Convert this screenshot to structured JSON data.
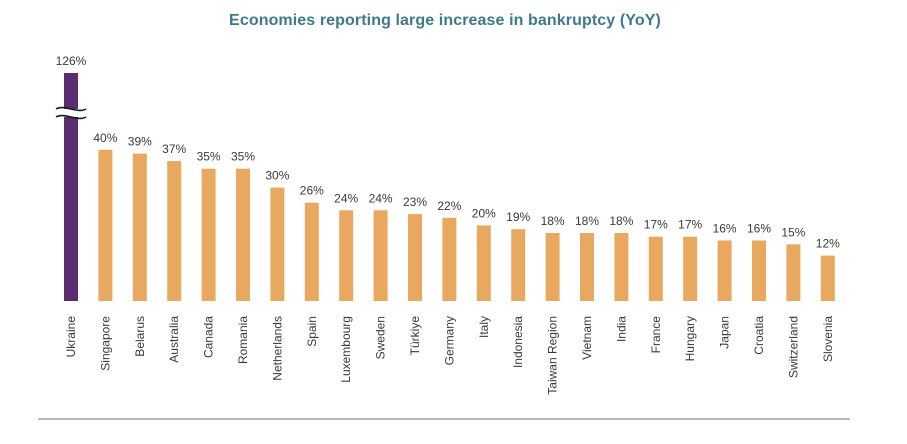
{
  "chart_data": {
    "type": "bar",
    "title": "Economies reporting large increase in bankruptcy (YoY)",
    "xlabel": "",
    "ylabel": "",
    "categories": [
      "Ukraine",
      "Singapore",
      "Belarus",
      "Australia",
      "Canada",
      "Romania",
      "Netherlands",
      "Spain",
      "Luxembourg",
      "Sweden",
      "Türkiye",
      "Germany",
      "Italy",
      "Indonesia",
      "Taiwan Region",
      "Vietnam",
      "India",
      "France",
      "Hungary",
      "Japan",
      "Croatia",
      "Switzerland",
      "Slovenia"
    ],
    "values": [
      126,
      40,
      39,
      37,
      35,
      35,
      30,
      26,
      24,
      24,
      23,
      22,
      20,
      19,
      18,
      18,
      18,
      17,
      17,
      16,
      16,
      15,
      12
    ],
    "value_labels": [
      "126%",
      "40%",
      "39%",
      "37%",
      "35%",
      "35%",
      "30%",
      "26%",
      "24%",
      "24%",
      "23%",
      "22%",
      "20%",
      "19%",
      "18%",
      "18%",
      "18%",
      "17%",
      "17%",
      "16%",
      "16%",
      "15%",
      "12%"
    ],
    "value_suffix": "%",
    "axis_break": true,
    "highlight_index": 0,
    "colors": {
      "title": "#3d7a8c",
      "bar": "#e8a85f",
      "highlight_bar": "#5b2c6f",
      "text": "#3a3a3a",
      "rule": "#b8b8b8"
    }
  }
}
